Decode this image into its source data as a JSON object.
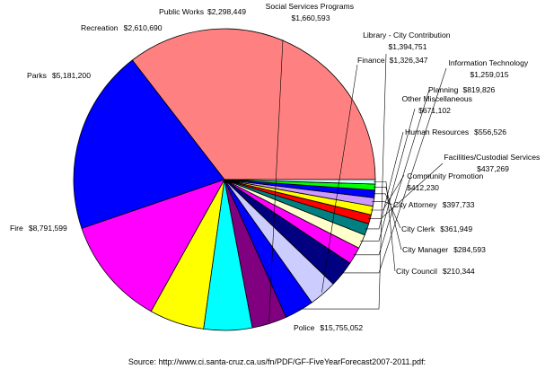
{
  "chart_data": {
    "type": "pie",
    "title": "",
    "slices": [
      {
        "label": "Police",
        "value_text": "$15,755,052",
        "value": 15755052,
        "color": "#ff8080"
      },
      {
        "label": "Fire",
        "value_text": "$8,791,599",
        "value": 8791599,
        "color": "#0000ff"
      },
      {
        "label": "Parks",
        "value_text": "$5,181,200",
        "value": 5181200,
        "color": "#ff00ff"
      },
      {
        "label": "Recreation",
        "value_text": "$2,610,690",
        "value": 2610690,
        "color": "#ffff00"
      },
      {
        "label": "Public Works",
        "value_text": "$2,298,449",
        "value": 2298449,
        "color": "#00ffff"
      },
      {
        "label": "Social Services Programs",
        "value_text": "$1,660,593",
        "value": 1660593,
        "color": "#800080"
      },
      {
        "label": "Library - City Contribution",
        "value_text": "$1,394,751",
        "value": 1394751,
        "color": "#0000ff"
      },
      {
        "label": "Finance",
        "value_text": "$1,326,347",
        "value": 1326347,
        "color": "#ccccff"
      },
      {
        "label": "Information Technology",
        "value_text": "$1,259,015",
        "value": 1259015,
        "color": "#000080"
      },
      {
        "label": "Planning",
        "value_text": "$819,826",
        "value": 819826,
        "color": "#ff00ff"
      },
      {
        "label": "Other Miscellaneous",
        "value_text": "$671,102",
        "value": 671102,
        "color": "#ffffcc"
      },
      {
        "label": "Human Resources",
        "value_text": "$556,526",
        "value": 556526,
        "color": "#008080"
      },
      {
        "label": "Facilities/Custodial Services",
        "value_text": "$437,269",
        "value": 437269,
        "color": "#ff0000"
      },
      {
        "label": "Community Promotion",
        "value_text": "$412,230",
        "value": 412230,
        "color": "#ffff00"
      },
      {
        "label": "City Attorney",
        "value_text": "$397,733",
        "value": 397733,
        "color": "#cc99ff"
      },
      {
        "label": "City Clerk",
        "value_text": "$361,949",
        "value": 361949,
        "color": "#0000ff"
      },
      {
        "label": "City Manager",
        "value_text": "$284,593",
        "value": 284593,
        "color": "#00ff00"
      },
      {
        "label": "City Council",
        "value_text": "$210,344",
        "value": 210344,
        "color": "#ccffff"
      }
    ]
  },
  "source_text": "Source: http://www.ci.santa-cruz.ca.us/fn/PDF/GF-FiveYearForecast2007-2011.pdf:"
}
